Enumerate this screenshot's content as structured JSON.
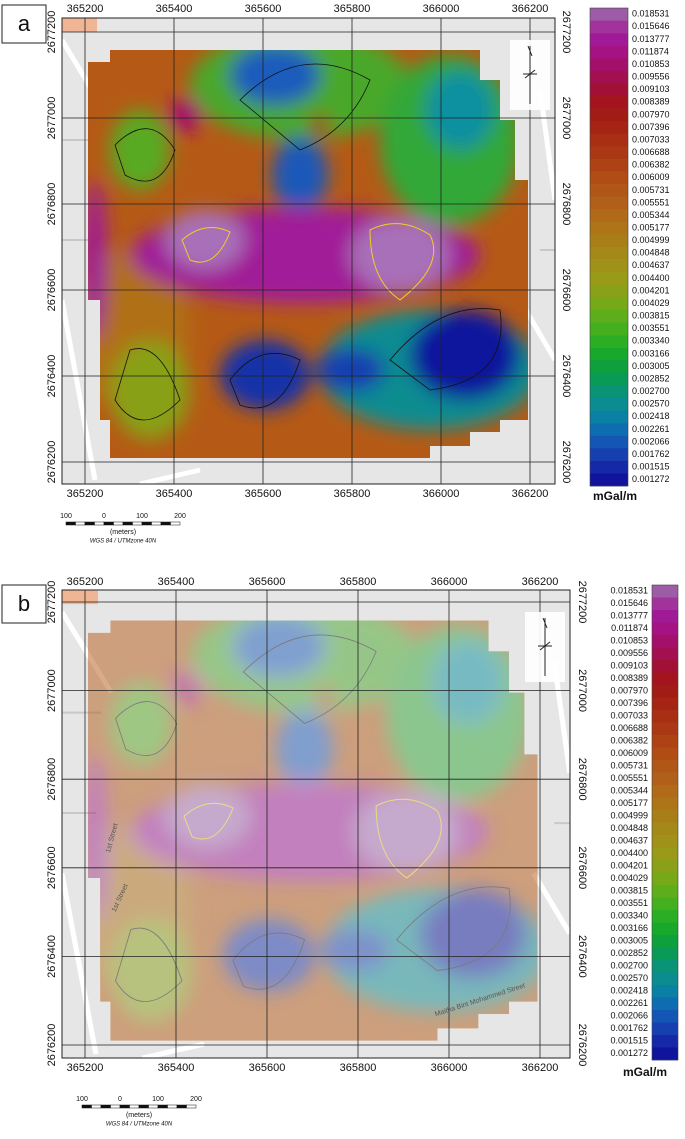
{
  "colorbar_colors": [
    "#9c5ca6",
    "#a3339c",
    "#a01a98",
    "#a51284",
    "#a3106c",
    "#a3104f",
    "#a21036",
    "#a3141f",
    "#a01c14",
    "#a52414",
    "#a82e14",
    "#ab3814",
    "#ae4214",
    "#b04c14",
    "#b05616",
    "#b06018",
    "#b06a18",
    "#ae7418",
    "#a87e18",
    "#a48818",
    "#a09218",
    "#989a18",
    "#8aa018",
    "#76a818",
    "#5eae1c",
    "#44b020",
    "#2cae24",
    "#18a82c",
    "#0ea03c",
    "#0a9a58",
    "#0a9476",
    "#0a8c90",
    "#0a80a4",
    "#0e6cb0",
    "#1456b4",
    "#1640b0",
    "#1428a8",
    "#10149c"
  ],
  "panels": [
    {
      "label": "a",
      "x_ticks": [
        365200,
        365400,
        365600,
        365800,
        366000,
        366200
      ],
      "y_ticks": [
        2676200,
        2676400,
        2676600,
        2676800,
        2677000,
        2677200
      ],
      "colorbar": {
        "labels": [
          "0.018531",
          "0.015646",
          "0.013777",
          "0.011874",
          "0.010853",
          "0.009556",
          "0.009103",
          "0.008389",
          "0.007970",
          "0.007396",
          "0.007033",
          "0.006688",
          "0.006382",
          "0.006009",
          "0.005731",
          "0.005551",
          "0.005344",
          "0.005177",
          "0.004999",
          "0.004848",
          "0.004637",
          "0.004400",
          "0.004201",
          "0.004029",
          "0.003815",
          "0.003551",
          "0.003340",
          "0.003166",
          "0.003005",
          "0.002852",
          "0.002700",
          "0.002570",
          "0.002418",
          "0.002261",
          "0.002066",
          "0.001762",
          "0.001515",
          "0.001272"
        ],
        "unit": "mGal/m"
      },
      "scale_bar": {
        "labels": [
          "100",
          "0",
          "100",
          "200"
        ],
        "unit": "(meters)",
        "crs": "WGS 84 / UTMzone 40N"
      }
    },
    {
      "label": "b",
      "x_ticks": [
        365200,
        365400,
        365600,
        365800,
        366000,
        366200
      ],
      "y_ticks": [
        2676200,
        2676400,
        2676600,
        2676800,
        2677000,
        2677200
      ],
      "colorbar": {
        "labels": [
          "0.018531",
          "0.015646",
          "0.013777",
          "0.011874",
          "0.010853",
          "0.009556",
          "0.009103",
          "0.008389",
          "0.007970",
          "0.007396",
          "0.007033",
          "0.006688",
          "0.006382",
          "0.006009",
          "0.005731",
          "0.005551",
          "0.005344",
          "0.005177",
          "0.004999",
          "0.004848",
          "0.004637",
          "0.004400",
          "0.004201",
          "0.004029",
          "0.003815",
          "0.003551",
          "0.003340",
          "0.003166",
          "0.003005",
          "0.002852",
          "0.002700",
          "0.002570",
          "0.002418",
          "0.002261",
          "0.002066",
          "0.001762",
          "0.001515",
          "0.001272"
        ],
        "unit": "mGal/m"
      },
      "scale_bar": {
        "labels": [
          "100",
          "0",
          "100",
          "200"
        ],
        "unit": "(meters)",
        "crs": "WGS 84 / UTMzone 40N"
      },
      "street_labels": [
        "1st Street",
        "1st Street",
        "Maitha Bint Mohammed Street"
      ]
    }
  ]
}
